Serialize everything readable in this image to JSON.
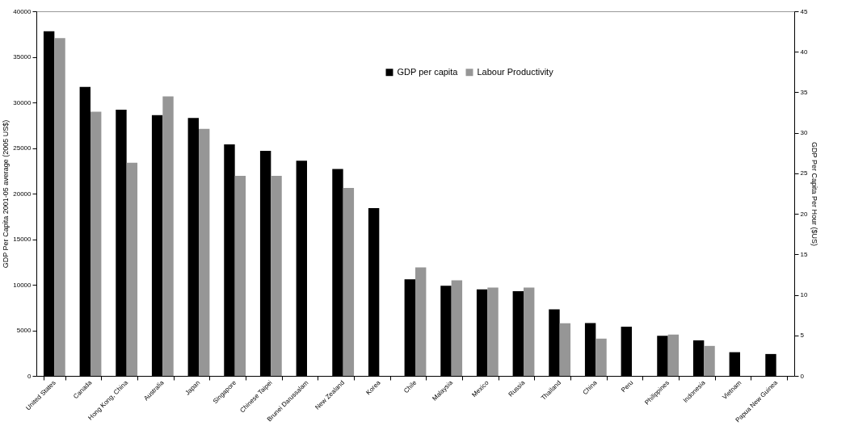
{
  "chart_data": {
    "type": "bar",
    "xlabel": null,
    "ylabel": "GDP Per Capita 2001-05 average (2005 US$)",
    "y2label": "GDP Per Capita Per Hour ($US)",
    "categories": [
      "United States",
      "Canada",
      "Hong Kong, China",
      "Australia",
      "Japan",
      "Singapore",
      "Chinese Taipei",
      "Brunei Darussalam",
      "New Zealand",
      "Korea",
      "Chile",
      "Malaysia",
      "Mexico",
      "Russia",
      "Thailand",
      "China",
      "Peru",
      "Philippines",
      "Indonesia",
      "Vietnam",
      "Papua New Guinea"
    ],
    "series": [
      {
        "name": "GDP per capita",
        "color": "#000000",
        "values": [
          37800,
          31700,
          29200,
          28600,
          28300,
          25400,
          24700,
          23600,
          22700,
          18400,
          10600,
          9900,
          9500,
          9300,
          7300,
          5800,
          5400,
          4400,
          3900,
          2600,
          2400
        ]
      },
      {
        "name": "Labour Productivity",
        "color": "#969696",
        "axis": "y2",
        "values": [
          41.7,
          32.6,
          26.3,
          34.5,
          30.5,
          24.7,
          24.7,
          null,
          23.2,
          null,
          13.4,
          11.8,
          10.9,
          10.9,
          6.5,
          4.6,
          null,
          5.1,
          3.7,
          null,
          null
        ]
      }
    ],
    "ylim": [
      0,
      40000
    ],
    "yticks": [
      0,
      5000,
      10000,
      15000,
      20000,
      25000,
      30000,
      35000,
      40000
    ],
    "y2lim": [
      0,
      45
    ],
    "y2ticks": [
      0,
      5,
      10,
      15,
      20,
      25,
      30,
      35,
      40,
      45
    ],
    "legend": "top"
  }
}
